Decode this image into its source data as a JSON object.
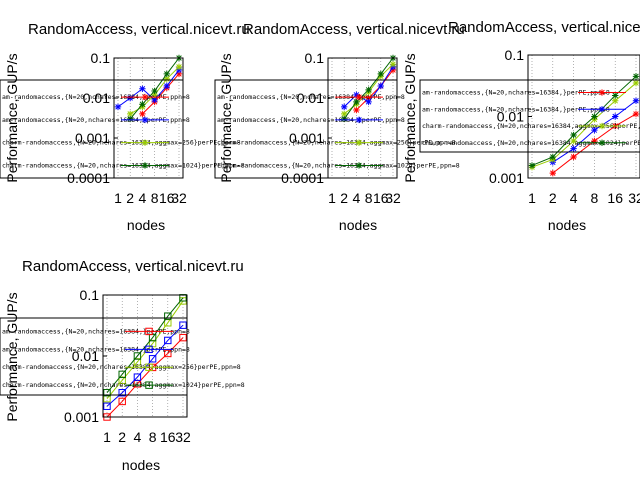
{
  "chart_data": [
    {
      "type": "line",
      "title": "RandomAccess, vertical.nicevt.ru",
      "xlabel": "nodes",
      "ylabel": "Performance, GUP/s",
      "x": [
        1,
        2,
        4,
        8,
        16,
        32
      ],
      "x_tick_labels": [
        "1",
        "2",
        "4",
        "8",
        "16",
        "32"
      ],
      "y_scale": "log",
      "ylim": [
        0.0001,
        0.1
      ],
      "y_tick_labels": [
        "0.0001",
        "0.001",
        "0.01",
        "0.1"
      ],
      "grid": "x-dotted",
      "legend_placement": "left",
      "series": [
        {
          "name": "am-randomaccess,{N=20,nchares=16384,}perPE,ppn=8",
          "color": "#ff0000",
          "marker": "star",
          "values": [
            null,
            null,
            0.004,
            0.008,
            0.018,
            0.04
          ]
        },
        {
          "name": "am-randomaccess,{N=20,nchares=16384,}perPE,ppn=8",
          "color": "#0000ff",
          "marker": "star",
          "values": [
            0.006,
            0.01,
            0.017,
            0.009,
            0.02,
            0.05
          ]
        },
        {
          "name": "charm-randomaccess,{N=20,nchares=16384,aggmax=256}perPE,ppn=8",
          "color": "#99cc00",
          "marker": "star",
          "values": [
            null,
            0.004,
            0.006,
            0.012,
            0.03,
            0.06
          ]
        },
        {
          "name": "charm-randomaccess,{N=20,nchares=16384,aggmax=1024}perPE,ppn=8",
          "color": "#006400",
          "marker": "star",
          "values": [
            null,
            0.003,
            0.007,
            0.015,
            0.04,
            0.1
          ]
        }
      ]
    },
    {
      "type": "line",
      "title": "RandomAccess, vertical.nicevt.ru",
      "xlabel": "nodes",
      "ylabel": "Performance, GUP/s",
      "x": [
        1,
        2,
        4,
        8,
        16,
        32
      ],
      "x_tick_labels": [
        "1",
        "2",
        "4",
        "8",
        "16",
        "32"
      ],
      "y_scale": "log",
      "ylim": [
        0.0001,
        0.1
      ],
      "y_tick_labels": [
        "0.0001",
        "0.001",
        "0.01",
        "0.1"
      ],
      "grid": "x-dotted",
      "legend_placement": "left",
      "series": [
        {
          "name": "am-randomaccess,{N=20,nchares=16384,}perPE,ppn=8",
          "color": "#ff0000",
          "marker": "star",
          "values": [
            null,
            null,
            0.005,
            0.01,
            0.02,
            0.05
          ]
        },
        {
          "name": "am-randomaccess,{N=20,nchares=16384,}perPE,ppn=8",
          "color": "#0000ff",
          "marker": "star",
          "values": [
            null,
            0.006,
            0.012,
            0.008,
            0.02,
            0.06
          ]
        },
        {
          "name": "charm-randomaccess,{N=20,nchares=16384,aggmax=256}perPE,ppn=8",
          "color": "#99cc00",
          "marker": "star",
          "values": [
            null,
            0.004,
            0.007,
            0.014,
            0.035,
            0.07
          ]
        },
        {
          "name": "charm-randomaccess,{N=20,nchares=16384,aggmax=1024}perPE,ppn=8",
          "color": "#006400",
          "marker": "star",
          "values": [
            null,
            0.003,
            0.008,
            0.016,
            0.04,
            0.1
          ]
        }
      ]
    },
    {
      "type": "line",
      "title": "RandomAccess, vertical.nicevt.ru",
      "xlabel": "nodes",
      "ylabel": "Performance, GUP/s",
      "x": [
        1,
        2,
        4,
        8,
        16,
        32
      ],
      "x_tick_labels": [
        "1",
        "2",
        "4",
        "8",
        "16",
        "32"
      ],
      "y_scale": "log",
      "ylim": [
        0.001,
        0.1
      ],
      "y_tick_labels": [
        "0.001",
        "0.01",
        "0.1"
      ],
      "grid": "x-dotted",
      "legend_placement": "left",
      "series": [
        {
          "name": "am-randomaccess,{N=20,nchares=16384,}perPE,ppn=8",
          "color": "#ff0000",
          "marker": "star",
          "values": [
            null,
            0.0012,
            0.0022,
            0.004,
            0.007,
            0.011
          ]
        },
        {
          "name": "am-randomaccess,{N=20,nchares=16384,}perPE,ppn=8",
          "color": "#0000ff",
          "marker": "star",
          "values": [
            null,
            0.0018,
            0.003,
            0.006,
            0.01,
            0.018
          ]
        },
        {
          "name": "charm-randomaccess,{N=20,nchares=16384,aggmax=256}perPE,ppn=8",
          "color": "#99cc00",
          "marker": "star",
          "values": [
            0.0015,
            0.002,
            0.004,
            0.009,
            0.018,
            0.035
          ]
        },
        {
          "name": "charm-randomaccess,{N=20,nchares=16384,aggmax=1024}perPE,ppn=8",
          "color": "#006400",
          "marker": "star",
          "values": [
            0.0016,
            0.0022,
            0.005,
            0.01,
            0.022,
            0.045
          ]
        }
      ]
    },
    {
      "type": "line",
      "title": "RandomAccess, vertical.nicevt.ru",
      "xlabel": "nodes",
      "ylabel": "Performance, GUP/s",
      "x": [
        1,
        2,
        4,
        8,
        16,
        32
      ],
      "x_tick_labels": [
        "1",
        "2",
        "4",
        "8",
        "16",
        "32"
      ],
      "y_scale": "log",
      "ylim": [
        0.001,
        0.1
      ],
      "y_tick_labels": [
        "0.001",
        "0.01",
        "0.1"
      ],
      "grid": "x-dotted",
      "legend_placement": "left",
      "series": [
        {
          "name": "am-randomaccess,{N=20,nchares=16384,}perPE,ppn=8",
          "color": "#ff0000",
          "marker": "square",
          "values": [
            0.001,
            0.0018,
            0.0035,
            0.0065,
            0.011,
            0.02
          ]
        },
        {
          "name": "am-randomaccess,{N=20,nchares=16384,}perPE,ppn=8",
          "color": "#0000ff",
          "marker": "square",
          "values": [
            0.0015,
            0.0025,
            0.0045,
            0.009,
            0.018,
            0.032
          ]
        },
        {
          "name": "charm-randomaccess,{N=20,nchares=16384,aggmax=256}perPE,ppn=8",
          "color": "#99cc00",
          "marker": "square",
          "values": [
            0.002,
            0.004,
            0.008,
            0.016,
            0.035,
            0.08
          ]
        },
        {
          "name": "charm-randomaccess,{N=20,nchares=16384,aggmax=1024}perPE,ppn=8",
          "color": "#006400",
          "marker": "square",
          "values": [
            0.0025,
            0.005,
            0.01,
            0.02,
            0.045,
            0.09
          ]
        }
      ]
    }
  ]
}
